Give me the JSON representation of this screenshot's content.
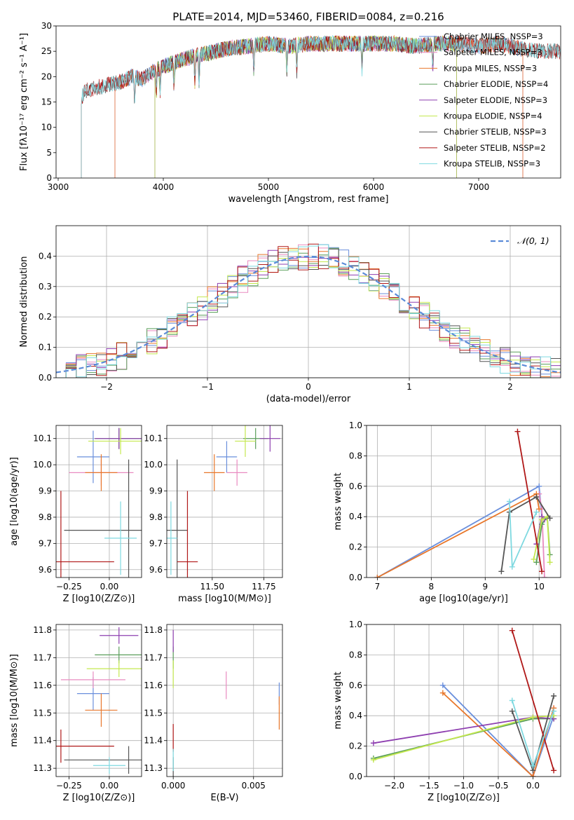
{
  "figure": {
    "title": "PLATE=2014, MJD=53460, FIBERID=0084, z=0.216"
  },
  "colors": {
    "Chabrier MILES": "#6a8fdc",
    "Salpeter MILES": "#e98bc1",
    "Kroupa MILES": "#e8772b",
    "Chabrier ELODIE": "#5a9e5a",
    "Salpeter ELODIE": "#8e3fb0",
    "Kroupa ELODIE": "#c4e84f",
    "Chabrier STELIB": "#555555",
    "Salpeter STELIB": "#b01818",
    "Kroupa STELIB": "#7fd9e0"
  },
  "chart_data": [
    {
      "id": "spectrum",
      "type": "line",
      "xlabel": "wavelength [Angstrom, rest frame]",
      "ylabel": "Flux [fλ10⁻¹⁷ erg cm⁻² s⁻¹ A⁻¹]",
      "xlim": [
        2980,
        7780
      ],
      "ylim": [
        0,
        30
      ],
      "xticks": [
        "3000",
        "4000",
        "5000",
        "6000",
        "7000"
      ],
      "yticks": [
        "0",
        "5",
        "10",
        "15",
        "20",
        "25",
        "30"
      ],
      "legend": [
        "Chabrier MILES, NSSP=3",
        "Salpeter MILES, NSSP=3",
        "Kroupa MILES, NSSP=3",
        "Chabrier ELODIE, NSSP=4",
        "Salpeter ELODIE, NSSP=3",
        "Kroupa ELODIE, NSSP=4",
        "Chabrier STELIB, NSSP=3",
        "Salpeter STELIB, NSSP=2",
        "Kroupa STELIB, NSSP=3"
      ],
      "legend_position": "right",
      "continuum": {
        "x": [
          3200,
          3250,
          3300,
          3400,
          3500,
          3600,
          3700,
          3800,
          3900,
          4000,
          4200,
          4400,
          4600,
          4800,
          5000,
          5200,
          5400,
          5600,
          5800,
          6000,
          6200,
          6400,
          6600,
          6800,
          7000,
          7200,
          7400,
          7600
        ],
        "y": [
          15,
          17,
          17.5,
          18,
          18.5,
          19,
          20,
          19.5,
          21,
          22,
          23.5,
          24.5,
          25.5,
          26,
          26.5,
          26,
          26.5,
          26.5,
          26.5,
          26.5,
          26.5,
          26,
          26.5,
          26.5,
          26,
          26.5,
          25.5,
          25
        ]
      },
      "model_starts": [
        {
          "model": "Chabrier MILES",
          "x0": 3540,
          "x1": 7420
        },
        {
          "model": "Salpeter MILES",
          "x0": 3540,
          "x1": 7420
        },
        {
          "model": "Kroupa MILES",
          "x0": 3540,
          "x1": 7420
        },
        {
          "model": "Chabrier ELODIE",
          "x0": 3920,
          "x1": 6790
        },
        {
          "model": "Salpeter ELODIE",
          "x0": 3920,
          "x1": 6790
        },
        {
          "model": "Kroupa ELODIE",
          "x0": 3920,
          "x1": 6790
        },
        {
          "model": "Chabrier STELIB",
          "x0": 3220,
          "x1": 7780
        },
        {
          "model": "Salpeter STELIB",
          "x0": 3220,
          "x1": 7780
        },
        {
          "model": "Kroupa STELIB",
          "x0": 3220,
          "x1": 7780
        }
      ]
    },
    {
      "id": "residuals",
      "type": "line",
      "xlabel": "(data-model)/error",
      "ylabel": "Normed distribution",
      "xlim": [
        -2.5,
        2.5
      ],
      "ylim": [
        0,
        0.5
      ],
      "xticks": [
        "−2",
        "−1",
        "0",
        "1",
        "2"
      ],
      "yticks": [
        "0.0",
        "0.1",
        "0.2",
        "0.3",
        "0.4"
      ],
      "grid": true,
      "legend": [
        "𝒩(0, 1)"
      ],
      "legend_position": "top-right",
      "bin_width": 0.1,
      "gaussian": {
        "mean": 0,
        "sigma": 1
      }
    },
    {
      "id": "age-vs-Z",
      "type": "scatter",
      "xlabel": "Z [log10(Z/Z⊙)]",
      "ylabel": "age  [log10(age/yr)]",
      "xlim": [
        -0.33,
        0.2
      ],
      "ylim": [
        9.57,
        10.15
      ],
      "xticks": [
        "−0.25",
        "0.00"
      ],
      "yticks": [
        "9.6",
        "9.7",
        "9.8",
        "9.9",
        "10.0",
        "10.1"
      ],
      "grid": true,
      "points": [
        {
          "model": "Chabrier MILES",
          "x": -0.1,
          "y": 10.03,
          "xerr": 0.1,
          "yerr": 0.1
        },
        {
          "model": "Salpeter MILES",
          "x": -0.05,
          "y": 9.97,
          "xerr": 0.2,
          "yerr": 0.05
        },
        {
          "model": "Kroupa MILES",
          "x": -0.05,
          "y": 9.97,
          "xerr": 0.1,
          "yerr": 0.07
        },
        {
          "model": "Chabrier ELODIE",
          "x": 0.06,
          "y": 10.1,
          "xerr": 0.15,
          "yerr": 0.04
        },
        {
          "model": "Salpeter ELODIE",
          "x": 0.06,
          "y": 10.1,
          "xerr": 0.15,
          "yerr": 0.04
        },
        {
          "model": "Kroupa ELODIE",
          "x": 0.07,
          "y": 10.09,
          "xerr": 0.2,
          "yerr": 0.05
        },
        {
          "model": "Chabrier STELIB",
          "x": 0.12,
          "y": 9.75,
          "xerr": 0.4,
          "yerr": 0.27
        },
        {
          "model": "Salpeter STELIB",
          "x": -0.3,
          "y": 9.63,
          "xerr": 0.33,
          "yerr": 0.27
        },
        {
          "model": "Kroupa STELIB",
          "x": 0.07,
          "y": 9.72,
          "xerr": 0.1,
          "yerr": 0.14
        }
      ]
    },
    {
      "id": "age-vs-mass",
      "type": "scatter",
      "xlabel": "mass [log10(M/M⊙)]",
      "ylabel": "",
      "xlim": [
        11.28,
        11.84
      ],
      "ylim": [
        9.57,
        10.15
      ],
      "xticks": [
        "11.50",
        "11.75"
      ],
      "yticks": [
        "9.6",
        "9.7",
        "9.8",
        "9.9",
        "10.0",
        "10.1"
      ],
      "grid": true,
      "points": [
        {
          "model": "Chabrier MILES",
          "x": 11.57,
          "y": 10.03,
          "xerr": 0.05,
          "yerr": 0.06
        },
        {
          "model": "Salpeter MILES",
          "x": 11.62,
          "y": 9.97,
          "xerr": 0.05,
          "yerr": 0.05
        },
        {
          "model": "Kroupa MILES",
          "x": 11.51,
          "y": 9.97,
          "xerr": 0.05,
          "yerr": 0.07
        },
        {
          "model": "Chabrier ELODIE",
          "x": 11.71,
          "y": 10.1,
          "xerr": 0.06,
          "yerr": 0.04
        },
        {
          "model": "Salpeter ELODIE",
          "x": 11.78,
          "y": 10.1,
          "xerr": 0.05,
          "yerr": 0.05
        },
        {
          "model": "Kroupa ELODIE",
          "x": 11.66,
          "y": 10.09,
          "xerr": 0.05,
          "yerr": 0.06
        },
        {
          "model": "Chabrier STELIB",
          "x": 11.33,
          "y": 9.75,
          "xerr": 0.05,
          "yerr": 0.27
        },
        {
          "model": "Salpeter STELIB",
          "x": 11.38,
          "y": 9.63,
          "xerr": 0.05,
          "yerr": 0.27
        },
        {
          "model": "Kroupa STELIB",
          "x": 11.3,
          "y": 9.72,
          "xerr": 0.03,
          "yerr": 0.14
        }
      ]
    },
    {
      "id": "weight-vs-age",
      "type": "line",
      "xlabel": "age  [log10(age/yr)]",
      "ylabel": "mass weight",
      "xlim": [
        6.8,
        10.4
      ],
      "ylim": [
        0,
        1.0
      ],
      "xticks": [
        "7",
        "8",
        "9",
        "10"
      ],
      "yticks": [
        "0.0",
        "0.2",
        "0.4",
        "0.6",
        "0.8",
        "1.0"
      ],
      "grid": true,
      "series": [
        {
          "model": "Chabrier MILES",
          "x": [
            7.0,
            10.0,
            10.05
          ],
          "y": [
            0.0,
            0.6,
            0.4
          ]
        },
        {
          "model": "Salpeter MILES",
          "x": [
            10.0,
            10.05,
            10.1
          ],
          "y": [
            0.55,
            0.45,
            0.0
          ]
        },
        {
          "model": "Kroupa MILES",
          "x": [
            7.0,
            9.95,
            10.0
          ],
          "y": [
            0.0,
            0.55,
            0.45
          ]
        },
        {
          "model": "Chabrier ELODIE",
          "x": [
            9.95,
            10.05,
            10.15,
            10.2
          ],
          "y": [
            0.1,
            0.35,
            0.4,
            0.15
          ]
        },
        {
          "model": "Salpeter ELODIE",
          "x": [
            9.95,
            10.05,
            10.1
          ],
          "y": [
            0.22,
            0.4,
            0.38
          ]
        },
        {
          "model": "Kroupa ELODIE",
          "x": [
            9.9,
            10.05,
            10.15,
            10.2
          ],
          "y": [
            0.12,
            0.38,
            0.4,
            0.1
          ]
        },
        {
          "model": "Chabrier STELIB",
          "x": [
            9.3,
            9.45,
            9.95,
            10.2
          ],
          "y": [
            0.04,
            0.43,
            0.53,
            0.39
          ]
        },
        {
          "model": "Salpeter STELIB",
          "x": [
            9.6,
            10.05
          ],
          "y": [
            0.96,
            0.04
          ]
        },
        {
          "model": "Kroupa STELIB",
          "x": [
            9.45,
            9.5,
            9.95
          ],
          "y": [
            0.5,
            0.07,
            0.43
          ]
        }
      ]
    },
    {
      "id": "mass-vs-Z",
      "type": "scatter",
      "xlabel": "Z [log10(Z/Z⊙)]",
      "ylabel": "mass [log10(M/M⊙)]",
      "xlim": [
        -0.33,
        0.2
      ],
      "ylim": [
        11.27,
        11.82
      ],
      "xticks": [
        "−0.25",
        "0.00"
      ],
      "yticks": [
        "11.3",
        "11.4",
        "11.5",
        "11.6",
        "11.7",
        "11.8"
      ],
      "grid": true,
      "points": [
        {
          "model": "Chabrier MILES",
          "x": -0.1,
          "y": 11.57,
          "xerr": 0.1,
          "yerr": 0.06
        },
        {
          "model": "Salpeter MILES",
          "x": -0.1,
          "y": 11.62,
          "xerr": 0.2,
          "yerr": 0.03
        },
        {
          "model": "Kroupa MILES",
          "x": -0.05,
          "y": 11.51,
          "xerr": 0.1,
          "yerr": 0.06
        },
        {
          "model": "Chabrier ELODIE",
          "x": 0.06,
          "y": 11.71,
          "xerr": 0.15,
          "yerr": 0.03
        },
        {
          "model": "Salpeter ELODIE",
          "x": 0.06,
          "y": 11.78,
          "xerr": 0.12,
          "yerr": 0.03
        },
        {
          "model": "Kroupa ELODIE",
          "x": 0.06,
          "y": 11.66,
          "xerr": 0.2,
          "yerr": 0.03
        },
        {
          "model": "Chabrier STELIB",
          "x": 0.12,
          "y": 11.33,
          "xerr": 0.4,
          "yerr": 0.05
        },
        {
          "model": "Salpeter STELIB",
          "x": -0.3,
          "y": 11.38,
          "xerr": 0.33,
          "yerr": 0.06
        },
        {
          "model": "Kroupa STELIB",
          "x": 0.0,
          "y": 11.31,
          "xerr": 0.1,
          "yerr": 0.03
        }
      ]
    },
    {
      "id": "mass-vs-EBV",
      "type": "scatter",
      "xlabel": "E(B-V)",
      "ylabel": "",
      "xlim": [
        -0.0004,
        0.0068
      ],
      "ylim": [
        11.27,
        11.82
      ],
      "xticks": [
        "0.000",
        "0.005"
      ],
      "yticks": [
        "11.3",
        "11.4",
        "11.5",
        "11.6",
        "11.7",
        "11.8"
      ],
      "grid": true,
      "points": [
        {
          "model": "Chabrier MILES",
          "x": 0.0066,
          "y": 11.57,
          "yerr": 0.04
        },
        {
          "model": "Salpeter MILES",
          "x": 0.0033,
          "y": 11.6,
          "yerr": 0.05
        },
        {
          "model": "Kroupa MILES",
          "x": 0.0066,
          "y": 11.5,
          "yerr": 0.06
        },
        {
          "model": "Chabrier ELODIE",
          "x": 0.0,
          "y": 11.7,
          "yerr": 0.04
        },
        {
          "model": "Salpeter ELODIE",
          "x": 0.0,
          "y": 11.76,
          "yerr": 0.04
        },
        {
          "model": "Kroupa ELODIE",
          "x": 0.0,
          "y": 11.64,
          "yerr": 0.05
        },
        {
          "model": "Chabrier STELIB",
          "x": 0.0,
          "y": 11.3,
          "yerr": 0.04
        },
        {
          "model": "Salpeter STELIB",
          "x": 0.0,
          "y": 11.41,
          "yerr": 0.05
        },
        {
          "model": "Kroupa STELIB",
          "x": 0.0,
          "y": 11.33,
          "yerr": 0.04
        }
      ]
    },
    {
      "id": "weight-vs-Z",
      "type": "line",
      "xlabel": "Z [log10(Z/Z⊙)]",
      "ylabel": "mass weight",
      "xlim": [
        -2.4,
        0.4
      ],
      "ylim": [
        0,
        1.0
      ],
      "xticks": [
        "−2.0",
        "−1.5",
        "−1.0",
        "−0.5",
        "0.0"
      ],
      "yticks": [
        "0.0",
        "0.2",
        "0.4",
        "0.6",
        "0.8",
        "1.0"
      ],
      "grid": true,
      "series": [
        {
          "model": "Chabrier MILES",
          "x": [
            -1.3,
            0.0,
            0.3
          ],
          "y": [
            0.6,
            0.0,
            0.4
          ]
        },
        {
          "model": "Salpeter MILES",
          "x": [
            0.0,
            0.3
          ],
          "y": [
            0.0,
            0.45
          ]
        },
        {
          "model": "Kroupa MILES",
          "x": [
            -1.3,
            0.0,
            0.3
          ],
          "y": [
            0.55,
            0.0,
            0.45
          ]
        },
        {
          "model": "Chabrier ELODIE",
          "x": [
            -2.3,
            0.0,
            0.3
          ],
          "y": [
            0.12,
            0.38,
            0.38
          ]
        },
        {
          "model": "Salpeter ELODIE",
          "x": [
            -2.3,
            0.0,
            0.3
          ],
          "y": [
            0.22,
            0.39,
            0.38
          ]
        },
        {
          "model": "Kroupa ELODIE",
          "x": [
            -2.3,
            0.0,
            0.3
          ],
          "y": [
            0.11,
            0.39,
            0.4
          ]
        },
        {
          "model": "Chabrier STELIB",
          "x": [
            -0.3,
            0.0,
            0.3
          ],
          "y": [
            0.43,
            0.04,
            0.53
          ]
        },
        {
          "model": "Salpeter STELIB",
          "x": [
            -0.3,
            0.3
          ],
          "y": [
            0.96,
            0.04
          ]
        },
        {
          "model": "Kroupa STELIB",
          "x": [
            -0.3,
            0.0,
            0.3
          ],
          "y": [
            0.5,
            0.07,
            0.43
          ]
        }
      ]
    }
  ]
}
